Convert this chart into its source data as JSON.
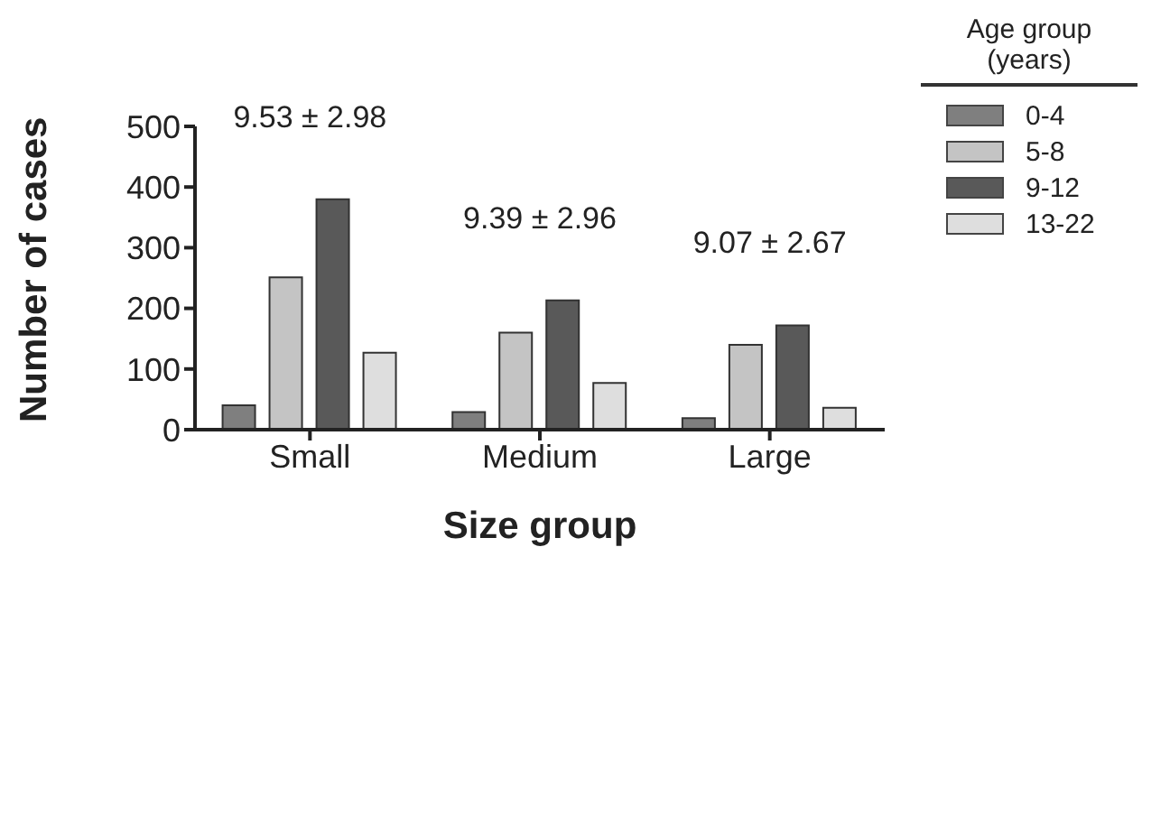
{
  "chart_data": {
    "type": "bar",
    "xlabel": "Size group",
    "ylabel": "Number of cases",
    "legend_title": "Age group (years)",
    "categories": [
      "Small",
      "Medium",
      "Large"
    ],
    "series": [
      {
        "name": "0-4",
        "color": "#7f7f7f",
        "values": [
          40,
          29,
          19
        ]
      },
      {
        "name": "5-8",
        "color": "#c4c4c4",
        "values": [
          251,
          160,
          140
        ]
      },
      {
        "name": "9-12",
        "color": "#595959",
        "values": [
          380,
          213,
          172
        ]
      },
      {
        "name": "13-22",
        "color": "#dedede",
        "values": [
          127,
          77,
          36
        ]
      }
    ],
    "ylim": [
      0,
      500
    ],
    "yticks": [
      0,
      100,
      200,
      300,
      400,
      500
    ],
    "grid": false,
    "legend": "top right",
    "annotations": [
      "9.53 ± 2.98",
      "9.39 ± 2.96",
      "9.07 ± 2.67"
    ]
  }
}
